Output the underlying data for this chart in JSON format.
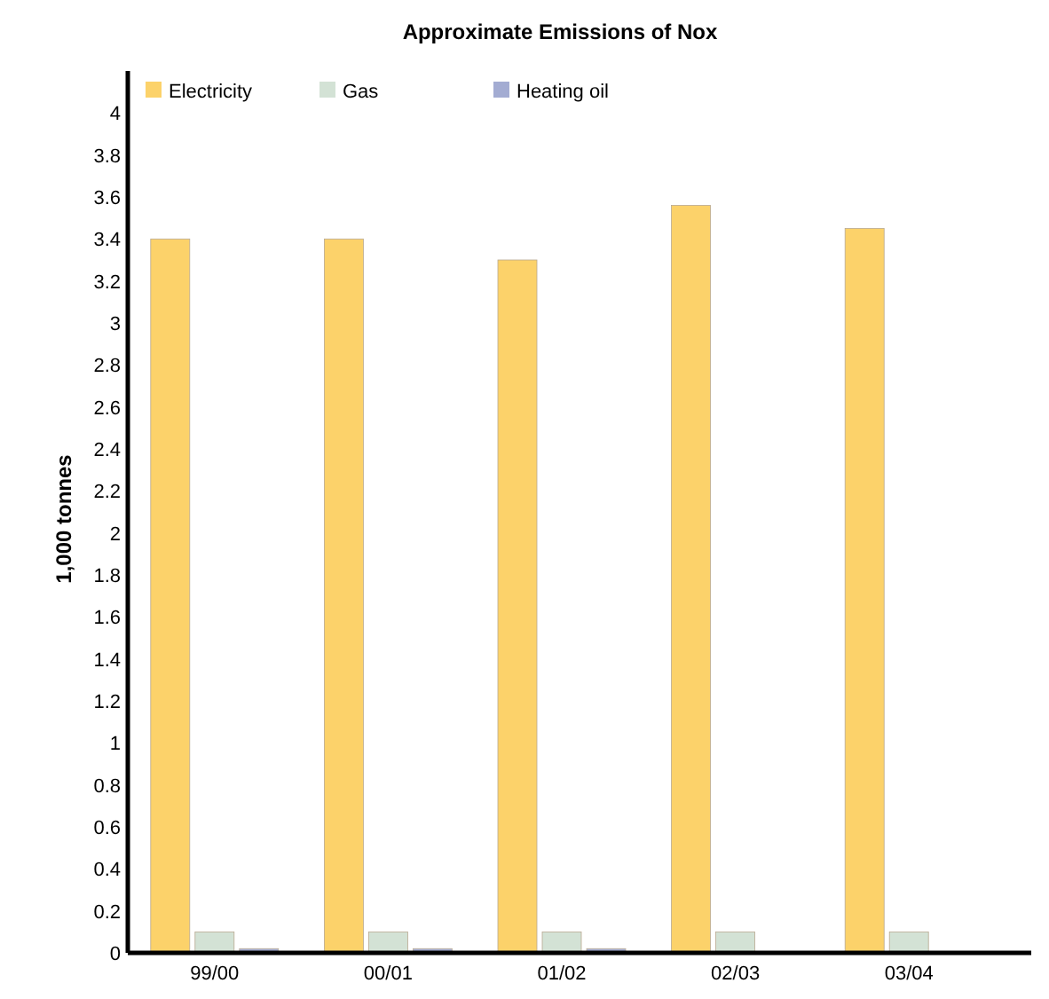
{
  "chart_data": {
    "type": "bar",
    "title": "Approximate Emissions of Nox",
    "ylabel": "1,000 tonnes",
    "categories": [
      "99/00",
      "00/01",
      "01/02",
      "02/03",
      "03/04"
    ],
    "series": [
      {
        "name": "Electricity",
        "color": "#fcd26a",
        "values": [
          3.4,
          3.4,
          3.3,
          3.56,
          3.45
        ]
      },
      {
        "name": "Gas",
        "color": "#d3e2d5",
        "values": [
          0.1,
          0.1,
          0.1,
          0.1,
          0.1
        ]
      },
      {
        "name": "Heating oil",
        "color": "#a3acd2",
        "values": [
          0.02,
          0.02,
          0.02,
          0,
          0
        ]
      }
    ],
    "ylim": [
      0,
      4.2
    ],
    "yticks": [
      0,
      0.2,
      0.4,
      0.6,
      0.8,
      1,
      1.2,
      1.4,
      1.6,
      1.8,
      2,
      2.2,
      2.4,
      2.6,
      2.8,
      3,
      3.2,
      3.4,
      3.6,
      3.8,
      4
    ],
    "grid": false,
    "legend": "top left"
  }
}
